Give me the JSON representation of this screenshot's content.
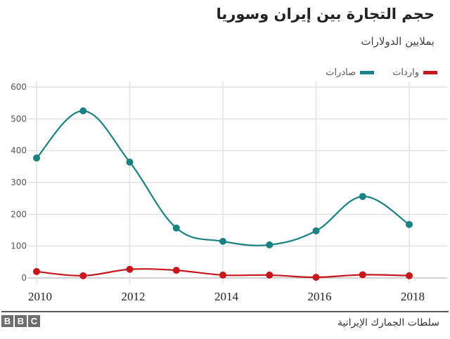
{
  "header": {
    "title": "حجم التجارة بين إيران وسوريا",
    "subtitle": "بملايين الدولارات"
  },
  "legend": [
    {
      "label": "صادرات",
      "color": "#1a8282"
    },
    {
      "label": "واردات",
      "color": "#c8161d"
    }
  ],
  "footer": {
    "logo": [
      "B",
      "B",
      "C"
    ],
    "source": "سلطات الجمارك الإيرانية"
  },
  "chart_data": {
    "type": "line",
    "title": "حجم التجارة بين إيران وسوريا",
    "subtitle": "بملايين الدولارات",
    "xlabel": "",
    "ylabel": "",
    "x": [
      2010,
      2011,
      2012,
      2013,
      2014,
      2015,
      2016,
      2017,
      2018
    ],
    "x_tick_labels": [
      "2010",
      "2012",
      "2014",
      "2016",
      "2018"
    ],
    "y_tick_labels": [
      "0",
      "100",
      "200",
      "300",
      "400",
      "500",
      "600"
    ],
    "ylim": [
      0,
      600
    ],
    "grid": true,
    "legend_position": "top-right",
    "series": [
      {
        "name": "صادرات",
        "color": "#1a8282",
        "values": [
          377,
          525,
          364,
          157,
          115,
          104,
          148,
          256,
          168
        ]
      },
      {
        "name": "واردات",
        "color": "#c8161d",
        "values": [
          20,
          7,
          27,
          24,
          9,
          9,
          2,
          10,
          7
        ]
      }
    ]
  }
}
